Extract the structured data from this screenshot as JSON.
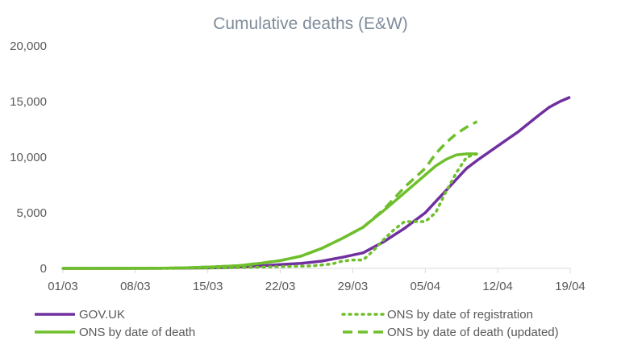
{
  "chart_data": {
    "type": "line",
    "title": "Cumulative deaths (E&W)",
    "xlabel": "",
    "ylabel": "",
    "x_ticks": [
      "01/03",
      "08/03",
      "15/03",
      "22/03",
      "29/03",
      "05/04",
      "12/04",
      "19/04"
    ],
    "y_ticks": [
      "0",
      "5,000",
      "10,000",
      "15,000",
      "20,000"
    ],
    "ylim": [
      0,
      20000
    ],
    "x_domain_days": [
      0,
      49
    ],
    "x_tick_days": [
      0,
      7,
      14,
      21,
      28,
      35,
      42,
      49
    ],
    "grid": false,
    "legend_position": "bottom",
    "series": [
      {
        "name": "GOV.UK",
        "color": "#7030a0",
        "dash": "solid",
        "x": [
          0,
          9,
          12,
          15,
          18,
          21,
          23,
          25,
          27,
          29,
          31,
          33,
          34,
          35,
          36,
          37,
          38,
          39,
          40,
          42,
          44,
          46,
          47,
          48,
          49
        ],
        "y": [
          0,
          5,
          30,
          60,
          150,
          350,
          450,
          650,
          1000,
          1400,
          2400,
          3600,
          4300,
          5000,
          6000,
          7000,
          8000,
          9000,
          9700,
          11000,
          12300,
          13800,
          14500,
          15000,
          15400
        ]
      },
      {
        "name": "ONS by date of registration",
        "color": "#6fbf2c",
        "dash": "dotted",
        "x": [
          0,
          10,
          14,
          18,
          21,
          24,
          26,
          27,
          28,
          29,
          30,
          31,
          32,
          33,
          34,
          35,
          36,
          37,
          38,
          39,
          40
        ],
        "y": [
          0,
          0,
          30,
          80,
          150,
          220,
          400,
          650,
          750,
          750,
          1600,
          2600,
          3500,
          4200,
          4200,
          4200,
          5000,
          6900,
          8600,
          10000,
          10300
        ]
      },
      {
        "name": "ONS by date of death",
        "color": "#6fbf2c",
        "dash": "solid",
        "x": [
          0,
          9,
          12,
          15,
          17,
          19,
          21,
          23,
          25,
          27,
          29,
          31,
          32,
          33,
          35,
          36,
          37,
          38,
          39,
          40
        ],
        "y": [
          0,
          10,
          60,
          150,
          250,
          450,
          700,
          1100,
          1800,
          2700,
          3700,
          5200,
          6000,
          6800,
          8400,
          9200,
          9800,
          10200,
          10300,
          10300
        ]
      },
      {
        "name": "ONS by date of death (updated)",
        "color": "#6fbf2c",
        "dash": "dashed",
        "x": [
          0,
          9,
          12,
          15,
          17,
          19,
          21,
          23,
          25,
          27,
          29,
          31,
          32,
          33,
          35,
          36,
          37,
          38,
          39,
          40
        ],
        "y": [
          0,
          10,
          60,
          150,
          250,
          450,
          700,
          1100,
          1800,
          2700,
          3700,
          5300,
          6300,
          7300,
          9000,
          10300,
          11300,
          12100,
          12700,
          13200
        ]
      }
    ]
  }
}
